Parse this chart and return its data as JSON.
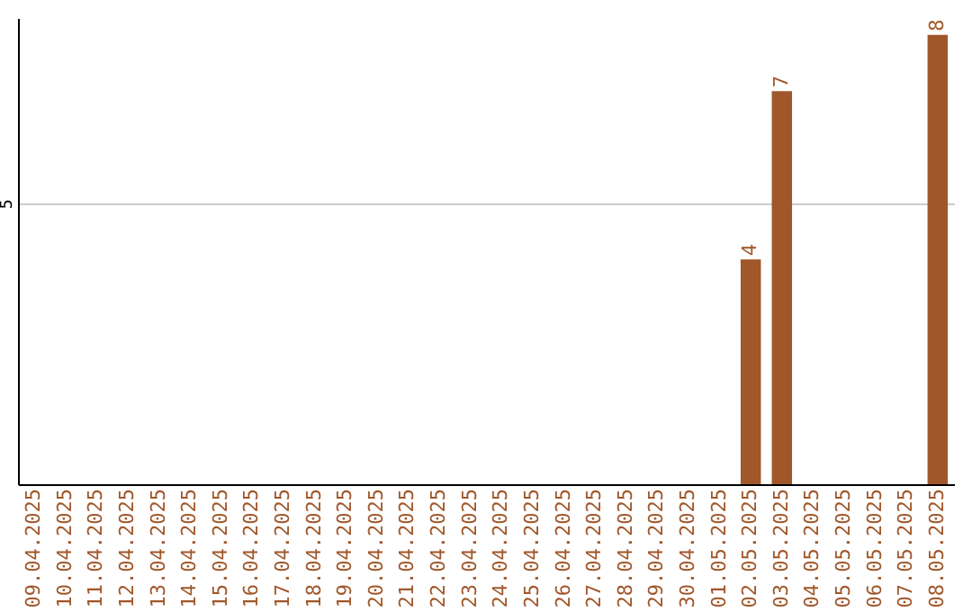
{
  "chart_data": {
    "type": "bar",
    "categories": [
      "09.04.2025",
      "10.04.2025",
      "11.04.2025",
      "12.04.2025",
      "13.04.2025",
      "14.04.2025",
      "15.04.2025",
      "16.04.2025",
      "17.04.2025",
      "18.04.2025",
      "19.04.2025",
      "20.04.2025",
      "21.04.2025",
      "22.04.2025",
      "23.04.2025",
      "24.04.2025",
      "25.04.2025",
      "26.04.2025",
      "27.04.2025",
      "28.04.2025",
      "29.04.2025",
      "30.04.2025",
      "01.05.2025",
      "02.05.2025",
      "03.05.2025",
      "04.05.2025",
      "05.05.2025",
      "06.05.2025",
      "07.05.2025",
      "08.05.2025"
    ],
    "values": [
      null,
      null,
      null,
      null,
      null,
      null,
      null,
      null,
      null,
      null,
      null,
      null,
      null,
      null,
      null,
      null,
      null,
      null,
      null,
      null,
      null,
      null,
      null,
      4,
      7,
      null,
      null,
      null,
      null,
      8
    ],
    "color": "#a0572a",
    "ylim": [
      0,
      8.3
    ],
    "yticks": [
      5
    ],
    "grid": "y",
    "data_labels": true
  }
}
